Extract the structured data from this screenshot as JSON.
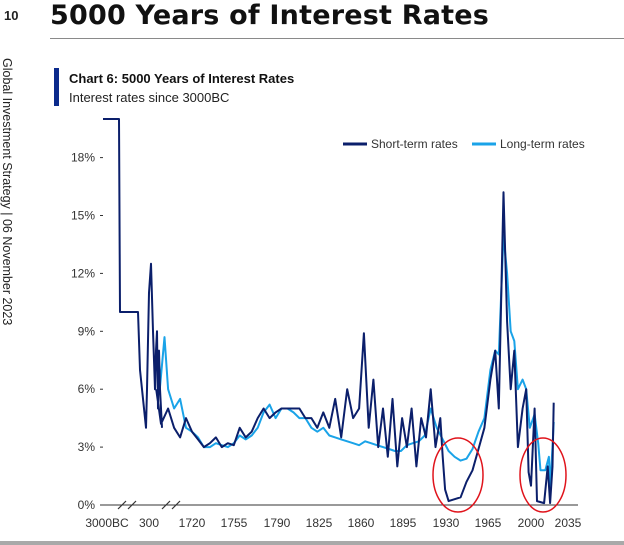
{
  "page": {
    "number": "10",
    "side_label": "Global Investment Strategy | 06 November 2023",
    "title": "5000 Years of Interest Rates"
  },
  "chart_data": {
    "type": "line",
    "title": "Chart 6: 5000 Years of Interest Rates",
    "subtitle": "Interest rates since 3000BC",
    "x_ticks": [
      "3000BC",
      "300",
      "1720",
      "1755",
      "1790",
      "1825",
      "1860",
      "1895",
      "1930",
      "1965",
      "2000",
      "2035"
    ],
    "y_ticks": [
      "0%",
      "3%",
      "6%",
      "9%",
      "12%",
      "15%",
      "18%"
    ],
    "ylim": [
      0,
      20
    ],
    "grid": false,
    "legend_position": "top-right",
    "axis_breaks": [
      "between 3000BC and 300",
      "between 300 and 1720"
    ],
    "annotations": [
      "red circle around 1930s–1950s lows",
      "red circle around 2010s–2020s lows"
    ],
    "colors": {
      "short": "#0b1f6b",
      "long": "#1aa3e8",
      "annotation": "#e0141c",
      "title_bar": "#0b2a8c"
    },
    "series": [
      {
        "name": "Short-term rates",
        "points": [
          [
            "3000BC",
            20.0
          ],
          [
            "3000BC+",
            20.0
          ],
          [
            "3000BC++",
            10.0
          ],
          [
            "mid1",
            10.0
          ],
          [
            "mid2",
            10.0
          ],
          [
            "0a",
            10.0
          ],
          [
            "0b",
            7.0
          ],
          [
            "0c",
            6.0
          ],
          [
            "0d",
            5.0
          ],
          [
            "0e",
            4.0
          ],
          [
            "0f",
            6.0
          ],
          [
            "0g",
            11.0
          ],
          [
            "0h",
            12.5
          ],
          [
            "0i",
            9.0
          ],
          [
            "0j",
            6.0
          ],
          [
            "0k",
            8.0
          ],
          [
            "0l",
            9.0
          ],
          [
            "300",
            5.0
          ],
          [
            "300b",
            8.0
          ],
          [
            "300c",
            6.0
          ],
          [
            "300d",
            4.0
          ]
        ],
        "modern": [
          [
            1690,
            6.0
          ],
          [
            1694,
            4.2
          ],
          [
            1700,
            5.0
          ],
          [
            1705,
            4.0
          ],
          [
            1710,
            3.5
          ],
          [
            1715,
            4.5
          ],
          [
            1720,
            3.8
          ],
          [
            1725,
            3.4
          ],
          [
            1730,
            3.0
          ],
          [
            1735,
            3.2
          ],
          [
            1740,
            3.5
          ],
          [
            1745,
            3.0
          ],
          [
            1750,
            3.2
          ],
          [
            1755,
            3.1
          ],
          [
            1760,
            4.0
          ],
          [
            1765,
            3.5
          ],
          [
            1770,
            3.8
          ],
          [
            1775,
            4.5
          ],
          [
            1780,
            5.0
          ],
          [
            1785,
            4.5
          ],
          [
            1790,
            4.8
          ],
          [
            1795,
            5.0
          ],
          [
            1800,
            5.0
          ],
          [
            1805,
            5.0
          ],
          [
            1810,
            5.0
          ],
          [
            1815,
            4.5
          ],
          [
            1820,
            4.5
          ],
          [
            1825,
            4.0
          ],
          [
            1830,
            4.8
          ],
          [
            1835,
            4.0
          ],
          [
            1840,
            5.5
          ],
          [
            1845,
            3.5
          ],
          [
            1850,
            6.0
          ],
          [
            1855,
            4.5
          ],
          [
            1860,
            5.0
          ],
          [
            1864,
            8.9
          ],
          [
            1868,
            4.0
          ],
          [
            1872,
            6.5
          ],
          [
            1876,
            3.0
          ],
          [
            1880,
            5.0
          ],
          [
            1884,
            2.5
          ],
          [
            1888,
            5.5
          ],
          [
            1892,
            2.0
          ],
          [
            1896,
            4.5
          ],
          [
            1900,
            3.0
          ],
          [
            1904,
            5.0
          ],
          [
            1908,
            2.0
          ],
          [
            1912,
            4.5
          ],
          [
            1916,
            3.5
          ],
          [
            1920,
            6.0
          ],
          [
            1924,
            3.0
          ],
          [
            1928,
            4.5
          ],
          [
            1930,
            2.5
          ],
          [
            1932,
            0.8
          ],
          [
            1935,
            0.2
          ],
          [
            1940,
            0.3
          ],
          [
            1945,
            0.4
          ],
          [
            1950,
            1.2
          ],
          [
            1955,
            1.8
          ],
          [
            1960,
            2.9
          ],
          [
            1965,
            4.0
          ],
          [
            1970,
            6.5
          ],
          [
            1974,
            8.0
          ],
          [
            1977,
            5.0
          ],
          [
            1981,
            16.2
          ],
          [
            1984,
            9.5
          ],
          [
            1987,
            6.0
          ],
          [
            1990,
            8.0
          ],
          [
            1993,
            3.0
          ],
          [
            1997,
            5.0
          ],
          [
            2000,
            6.0
          ],
          [
            2002,
            1.7
          ],
          [
            2004,
            1.0
          ],
          [
            2007,
            5.0
          ],
          [
            2009,
            0.2
          ],
          [
            2015,
            0.1
          ],
          [
            2018,
            2.0
          ],
          [
            2020,
            0.1
          ],
          [
            2022,
            2.0
          ],
          [
            2023,
            5.3
          ]
        ]
      },
      {
        "name": "Long-term rates",
        "modern": [
          [
            1693,
            6.0
          ],
          [
            1697,
            8.7
          ],
          [
            1700,
            6.0
          ],
          [
            1705,
            5.0
          ],
          [
            1710,
            5.5
          ],
          [
            1715,
            4.0
          ],
          [
            1720,
            3.8
          ],
          [
            1725,
            3.5
          ],
          [
            1730,
            3.0
          ],
          [
            1735,
            3.0
          ],
          [
            1740,
            3.2
          ],
          [
            1745,
            3.1
          ],
          [
            1750,
            3.0
          ],
          [
            1755,
            3.2
          ],
          [
            1760,
            3.6
          ],
          [
            1765,
            3.4
          ],
          [
            1770,
            3.6
          ],
          [
            1775,
            4.0
          ],
          [
            1780,
            4.8
          ],
          [
            1785,
            5.2
          ],
          [
            1790,
            4.5
          ],
          [
            1795,
            5.0
          ],
          [
            1800,
            5.0
          ],
          [
            1805,
            4.8
          ],
          [
            1810,
            4.5
          ],
          [
            1815,
            4.5
          ],
          [
            1820,
            4.0
          ],
          [
            1825,
            3.8
          ],
          [
            1830,
            4.0
          ],
          [
            1835,
            3.6
          ],
          [
            1840,
            3.5
          ],
          [
            1845,
            3.4
          ],
          [
            1850,
            3.3
          ],
          [
            1855,
            3.2
          ],
          [
            1860,
            3.1
          ],
          [
            1865,
            3.3
          ],
          [
            1870,
            3.2
          ],
          [
            1875,
            3.1
          ],
          [
            1880,
            3.0
          ],
          [
            1885,
            2.9
          ],
          [
            1890,
            2.8
          ],
          [
            1895,
            2.8
          ],
          [
            1900,
            3.1
          ],
          [
            1905,
            3.2
          ],
          [
            1910,
            3.3
          ],
          [
            1915,
            3.6
          ],
          [
            1920,
            5.0
          ],
          [
            1925,
            4.0
          ],
          [
            1930,
            3.4
          ],
          [
            1935,
            2.8
          ],
          [
            1940,
            2.5
          ],
          [
            1945,
            2.3
          ],
          [
            1950,
            2.4
          ],
          [
            1955,
            2.9
          ],
          [
            1960,
            3.8
          ],
          [
            1965,
            4.5
          ],
          [
            1970,
            7.0
          ],
          [
            1974,
            8.0
          ],
          [
            1977,
            7.8
          ],
          [
            1981,
            14.0
          ],
          [
            1984,
            12.0
          ],
          [
            1987,
            9.0
          ],
          [
            1990,
            8.5
          ],
          [
            1993,
            6.0
          ],
          [
            1997,
            6.5
          ],
          [
            2000,
            6.0
          ],
          [
            2003,
            4.0
          ],
          [
            2007,
            4.7
          ],
          [
            2010,
            3.2
          ],
          [
            2012,
            1.8
          ],
          [
            2016,
            1.8
          ],
          [
            2019,
            2.5
          ],
          [
            2020,
            0.9
          ],
          [
            2022,
            3.0
          ],
          [
            2023,
            4.3
          ]
        ]
      }
    ]
  }
}
